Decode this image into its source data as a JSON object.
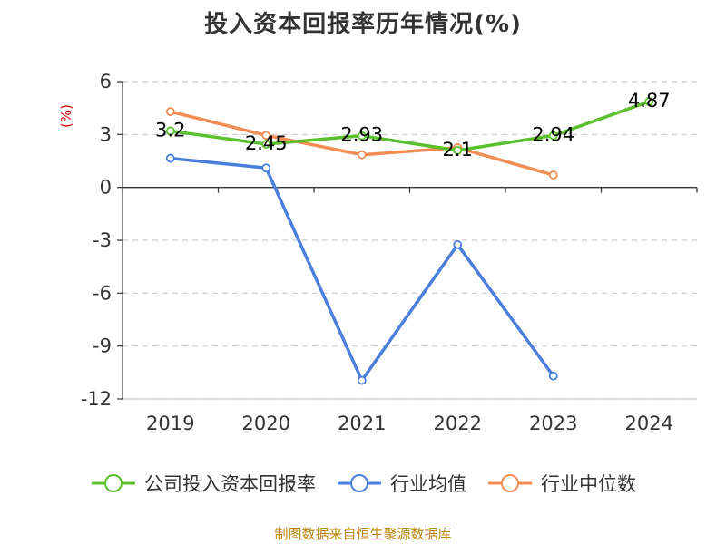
{
  "chart_data": {
    "type": "line",
    "title": "投入资本回报率历年情况(%)",
    "ylabel": "(%)",
    "categories": [
      "2019",
      "2020",
      "2021",
      "2022",
      "2023",
      "2024"
    ],
    "ylim": [
      -12,
      6
    ],
    "yticks": [
      "6",
      "3",
      "0",
      "-3",
      "-6",
      "-9",
      "-12"
    ],
    "grid": true,
    "legend_position": "bottom",
    "series": [
      {
        "name": "公司投入资本回报率",
        "color": "#5ac02c",
        "values": [
          3.2,
          2.45,
          2.93,
          2.1,
          2.94,
          4.87
        ],
        "labels": [
          "3.2",
          "2.45",
          "2.93",
          "2.1",
          "2.94",
          "4.87"
        ]
      },
      {
        "name": "行业均值",
        "color": "#4a7fdb",
        "values": [
          1.65,
          1.1,
          -10.95,
          -3.25,
          -10.7,
          null
        ]
      },
      {
        "name": "行业中位数",
        "color": "#f48d54",
        "values": [
          4.3,
          2.95,
          1.85,
          2.25,
          0.7,
          null
        ]
      }
    ]
  },
  "source": "制图数据来自恒生聚源数据库"
}
